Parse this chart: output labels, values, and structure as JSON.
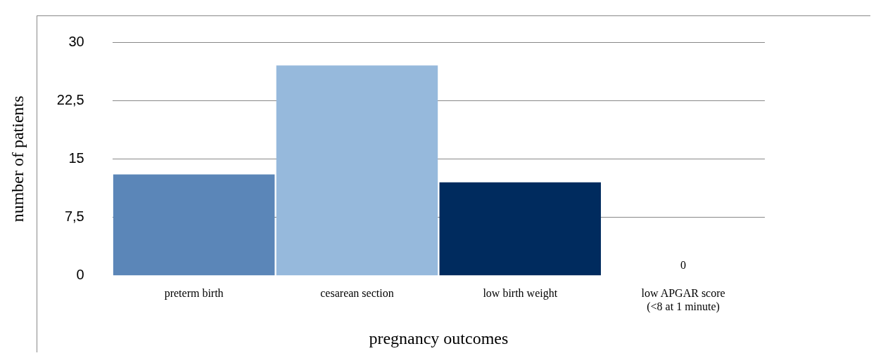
{
  "chart_data": {
    "type": "bar",
    "xlabel": "pregnancy outcomes",
    "ylabel": "number of patients",
    "categories": [
      "preterm birth",
      "cesarean section",
      "low birth weight",
      "low APGAR score (<8 at 1 minute)"
    ],
    "values": [
      13,
      27,
      12,
      0
    ],
    "colors": [
      "#5b86b8",
      "#96b9dc",
      "#002b5e",
      "#5b86b8"
    ],
    "value_labels": [
      null,
      null,
      null,
      "0"
    ],
    "ylim": [
      0,
      30
    ],
    "yticks": [
      0,
      {
        "value": 7.5,
        "label": "7,5"
      },
      15,
      {
        "value": 22.5,
        "label": "22,5"
      },
      30
    ],
    "grid": "y",
    "legend": false
  }
}
